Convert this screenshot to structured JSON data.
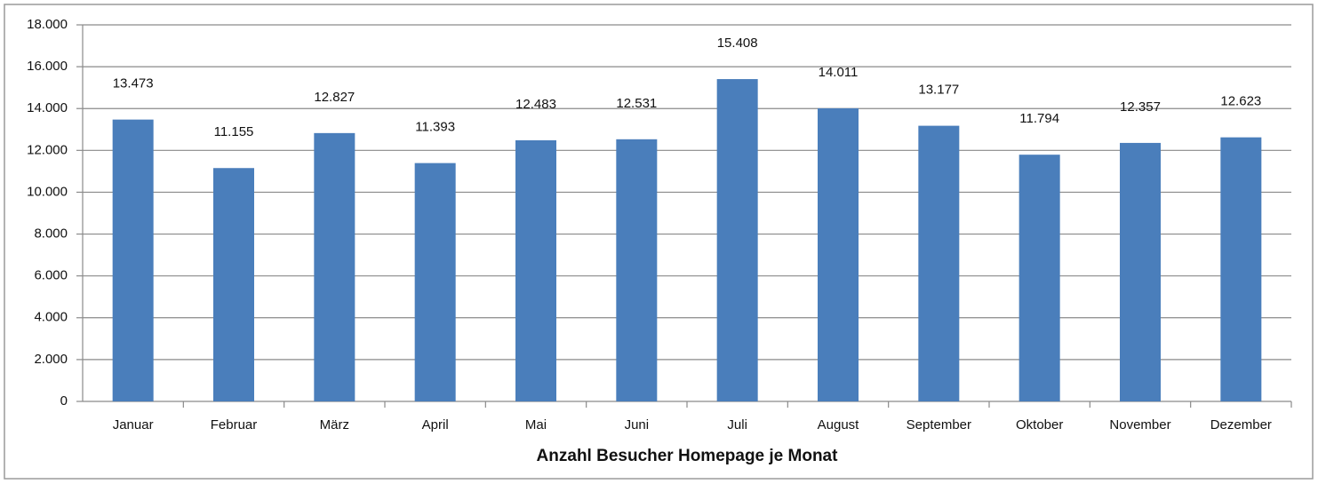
{
  "chart_data": {
    "type": "bar",
    "xlabel": "Anzahl Besucher Homepage je Monat",
    "categories": [
      "Januar",
      "Februar",
      "März",
      "April",
      "Mai",
      "Juni",
      "Juli",
      "August",
      "September",
      "Oktober",
      "November",
      "Dezember"
    ],
    "values": [
      13473,
      11155,
      12827,
      11393,
      12483,
      12531,
      15408,
      14011,
      13177,
      11794,
      12357,
      12623
    ],
    "value_labels": [
      "13.473",
      "11.155",
      "12.827",
      "11.393",
      "12.483",
      "12.531",
      "15.408",
      "14.011",
      "13.177",
      "11.794",
      "12.357",
      "12.623"
    ],
    "color": "#4a7ebb",
    "ylim": [
      0,
      18000
    ],
    "yticks": [
      0,
      {
        "value": 2000,
        "label": "2.000"
      },
      {
        "value": 4000,
        "label": "4.000"
      },
      {
        "value": 6000,
        "label": "6.000"
      },
      {
        "value": 8000,
        "label": "8.000"
      },
      {
        "value": 10000,
        "label": "10.000"
      },
      {
        "value": 12000,
        "label": "12.000"
      },
      {
        "value": 14000,
        "label": "14.000"
      },
      {
        "value": 16000,
        "label": "16.000"
      },
      {
        "value": 18000,
        "label": "18.000"
      }
    ],
    "grid": true
  }
}
